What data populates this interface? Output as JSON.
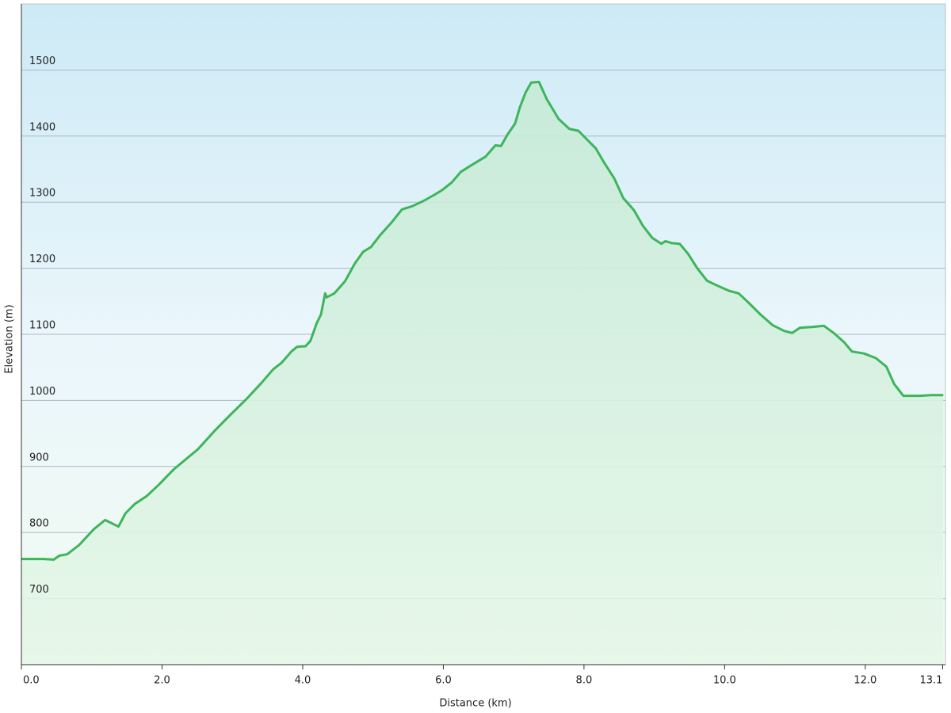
{
  "chart_data": {
    "type": "area",
    "x_label": "Distance  (km)",
    "y_label": "Elevation (m)",
    "color": "#3db55a",
    "grid": true,
    "xlim": [
      0,
      13.14
    ],
    "ylim": [
      600,
      1600
    ],
    "xticks": [
      {
        "value": 0,
        "label": "0.0"
      },
      {
        "value": 2,
        "label": "2.0"
      },
      {
        "value": 4,
        "label": "4.0"
      },
      {
        "value": 6,
        "label": "6.0"
      },
      {
        "value": 8,
        "label": "8.0"
      },
      {
        "value": 10,
        "label": "10.0"
      },
      {
        "value": 12,
        "label": "12.0"
      },
      {
        "value": 13.1,
        "label": "13.1"
      }
    ],
    "yticks": [
      700,
      800,
      900,
      1000,
      1100,
      1200,
      1300,
      1400,
      1500
    ],
    "x": [
      0,
      0.32,
      0.46,
      0.54,
      0.65,
      0.82,
      1.03,
      1.19,
      1.38,
      1.48,
      1.61,
      1.78,
      1.95,
      2.17,
      2.34,
      2.51,
      2.74,
      2.96,
      3.19,
      3.41,
      3.58,
      3.7,
      3.84,
      3.92,
      4.04,
      4.11,
      4.2,
      4.26,
      4.32,
      4.34,
      4.45,
      4.6,
      4.74,
      4.86,
      4.97,
      5.1,
      5.27,
      5.41,
      5.56,
      5.72,
      5.87,
      5.98,
      6.12,
      6.25,
      6.43,
      6.6,
      6.74,
      6.82,
      6.91,
      7.02,
      7.09,
      7.17,
      7.25,
      7.36,
      7.47,
      7.64,
      7.79,
      7.92,
      8.06,
      8.17,
      8.28,
      8.43,
      8.56,
      8.71,
      8.84,
      8.97,
      9.1,
      9.16,
      9.25,
      9.36,
      9.48,
      9.61,
      9.75,
      9.89,
      10.06,
      10.2,
      10.34,
      10.51,
      10.68,
      10.85,
      10.96,
      11.07,
      11.24,
      11.41,
      11.55,
      11.7,
      11.81,
      11.98,
      12.15,
      12.3,
      12.41,
      12.54,
      12.77,
      12.94,
      13.11
    ],
    "values": [
      760,
      760,
      759,
      765,
      767,
      781,
      805,
      819,
      809,
      829,
      843,
      855,
      872,
      896,
      911,
      926,
      953,
      977,
      1001,
      1026,
      1047,
      1057,
      1074,
      1081,
      1082,
      1090,
      1117,
      1130,
      1162,
      1156,
      1162,
      1180,
      1207,
      1225,
      1232,
      1250,
      1270,
      1289,
      1294,
      1302,
      1311,
      1318,
      1330,
      1346,
      1358,
      1369,
      1386,
      1385,
      1402,
      1419,
      1444,
      1466,
      1481,
      1482,
      1456,
      1426,
      1411,
      1408,
      1393,
      1381,
      1361,
      1336,
      1306,
      1288,
      1264,
      1246,
      1237,
      1241,
      1238,
      1237,
      1222,
      1200,
      1181,
      1174,
      1166,
      1162,
      1148,
      1130,
      1114,
      1105,
      1102,
      1110,
      1111,
      1113,
      1102,
      1088,
      1074,
      1071,
      1064,
      1051,
      1025,
      1007,
      1007,
      1008,
      1008
    ]
  }
}
